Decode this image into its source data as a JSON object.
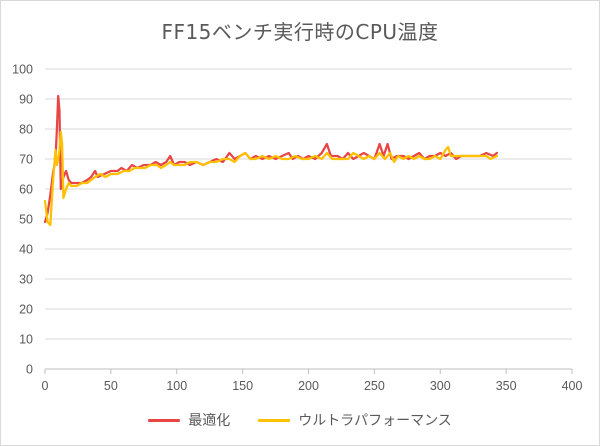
{
  "chart_data": {
    "type": "line",
    "title": "FF15ベンチ実行時のCPU温度",
    "xlabel": "",
    "ylabel": "",
    "xlim": [
      0,
      400
    ],
    "ylim": [
      0,
      100
    ],
    "x_ticks": [
      0,
      50,
      100,
      150,
      200,
      250,
      300,
      350,
      400
    ],
    "y_ticks": [
      0,
      10,
      20,
      30,
      40,
      50,
      60,
      70,
      80,
      90,
      100
    ],
    "grid": "horizontal",
    "legend": "bottom",
    "series": [
      {
        "name": "最適化",
        "color": "#e84545",
        "points": [
          [
            0,
            49
          ],
          [
            2,
            52
          ],
          [
            4,
            58
          ],
          [
            6,
            65
          ],
          [
            8,
            70
          ],
          [
            9,
            80
          ],
          [
            10,
            91
          ],
          [
            11,
            86
          ],
          [
            12,
            60
          ],
          [
            14,
            64
          ],
          [
            16,
            66
          ],
          [
            18,
            63
          ],
          [
            20,
            62
          ],
          [
            24,
            62
          ],
          [
            28,
            62
          ],
          [
            32,
            63
          ],
          [
            35,
            64
          ],
          [
            38,
            66
          ],
          [
            40,
            64
          ],
          [
            45,
            65
          ],
          [
            50,
            66
          ],
          [
            55,
            66
          ],
          [
            58,
            67
          ],
          [
            62,
            66
          ],
          [
            66,
            68
          ],
          [
            70,
            67
          ],
          [
            75,
            68
          ],
          [
            80,
            68
          ],
          [
            84,
            69
          ],
          [
            88,
            68
          ],
          [
            92,
            69
          ],
          [
            95,
            71
          ],
          [
            98,
            68
          ],
          [
            102,
            69
          ],
          [
            106,
            69
          ],
          [
            110,
            68
          ],
          [
            115,
            69
          ],
          [
            120,
            68
          ],
          [
            125,
            69
          ],
          [
            130,
            70
          ],
          [
            135,
            69
          ],
          [
            140,
            72
          ],
          [
            144,
            70
          ],
          [
            148,
            71
          ],
          [
            152,
            72
          ],
          [
            156,
            70
          ],
          [
            160,
            71
          ],
          [
            165,
            70
          ],
          [
            170,
            71
          ],
          [
            175,
            70
          ],
          [
            180,
            71
          ],
          [
            185,
            72
          ],
          [
            188,
            70
          ],
          [
            192,
            71
          ],
          [
            196,
            70
          ],
          [
            200,
            71
          ],
          [
            205,
            70
          ],
          [
            210,
            72
          ],
          [
            214,
            75
          ],
          [
            217,
            71
          ],
          [
            222,
            71
          ],
          [
            226,
            70
          ],
          [
            230,
            72
          ],
          [
            234,
            70
          ],
          [
            238,
            71
          ],
          [
            242,
            72
          ],
          [
            246,
            71
          ],
          [
            250,
            70
          ],
          [
            254,
            75
          ],
          [
            257,
            71
          ],
          [
            260,
            75
          ],
          [
            263,
            70
          ],
          [
            267,
            71
          ],
          [
            272,
            71
          ],
          [
            276,
            70
          ],
          [
            280,
            71
          ],
          [
            284,
            72
          ],
          [
            288,
            70
          ],
          [
            292,
            71
          ],
          [
            296,
            71
          ],
          [
            300,
            72
          ],
          [
            304,
            71
          ],
          [
            308,
            72
          ],
          [
            312,
            70
          ],
          [
            316,
            71
          ],
          [
            320,
            71
          ],
          [
            325,
            71
          ],
          [
            330,
            71
          ],
          [
            335,
            72
          ],
          [
            340,
            71
          ],
          [
            343,
            72
          ]
        ]
      },
      {
        "name": "ウルトラパフォーマンス",
        "color": "#ffc000",
        "points": [
          [
            0,
            56
          ],
          [
            2,
            49
          ],
          [
            4,
            48
          ],
          [
            6,
            62
          ],
          [
            8,
            73
          ],
          [
            9,
            68
          ],
          [
            10,
            70
          ],
          [
            11,
            73
          ],
          [
            12,
            79
          ],
          [
            13,
            75
          ],
          [
            14,
            57
          ],
          [
            16,
            60
          ],
          [
            18,
            62
          ],
          [
            20,
            61
          ],
          [
            24,
            61
          ],
          [
            28,
            62
          ],
          [
            32,
            62
          ],
          [
            35,
            63
          ],
          [
            38,
            64
          ],
          [
            42,
            65
          ],
          [
            46,
            64
          ],
          [
            50,
            65
          ],
          [
            55,
            65
          ],
          [
            60,
            66
          ],
          [
            64,
            66
          ],
          [
            68,
            67
          ],
          [
            72,
            67
          ],
          [
            76,
            67
          ],
          [
            80,
            68
          ],
          [
            85,
            68
          ],
          [
            88,
            67
          ],
          [
            92,
            68
          ],
          [
            95,
            69
          ],
          [
            98,
            68
          ],
          [
            102,
            68
          ],
          [
            106,
            68
          ],
          [
            110,
            69
          ],
          [
            115,
            69
          ],
          [
            120,
            68
          ],
          [
            125,
            69
          ],
          [
            130,
            69
          ],
          [
            135,
            70
          ],
          [
            140,
            70
          ],
          [
            144,
            69
          ],
          [
            148,
            71
          ],
          [
            152,
            72
          ],
          [
            156,
            70
          ],
          [
            160,
            70
          ],
          [
            165,
            71
          ],
          [
            170,
            70
          ],
          [
            175,
            71
          ],
          [
            180,
            70
          ],
          [
            185,
            70
          ],
          [
            190,
            71
          ],
          [
            195,
            70
          ],
          [
            200,
            70
          ],
          [
            205,
            71
          ],
          [
            210,
            70
          ],
          [
            214,
            72
          ],
          [
            218,
            70
          ],
          [
            222,
            70
          ],
          [
            226,
            70
          ],
          [
            230,
            70
          ],
          [
            234,
            72
          ],
          [
            238,
            71
          ],
          [
            242,
            70
          ],
          [
            246,
            71
          ],
          [
            250,
            70
          ],
          [
            254,
            72
          ],
          [
            258,
            70
          ],
          [
            262,
            72
          ],
          [
            265,
            69
          ],
          [
            268,
            71
          ],
          [
            272,
            70
          ],
          [
            276,
            71
          ],
          [
            280,
            70
          ],
          [
            284,
            71
          ],
          [
            288,
            70
          ],
          [
            292,
            70
          ],
          [
            296,
            71
          ],
          [
            300,
            70
          ],
          [
            304,
            73
          ],
          [
            306,
            74
          ],
          [
            308,
            71
          ],
          [
            312,
            71
          ],
          [
            316,
            71
          ],
          [
            320,
            71
          ],
          [
            325,
            71
          ],
          [
            330,
            71
          ],
          [
            335,
            71
          ],
          [
            338,
            70
          ],
          [
            343,
            71
          ]
        ]
      }
    ]
  }
}
